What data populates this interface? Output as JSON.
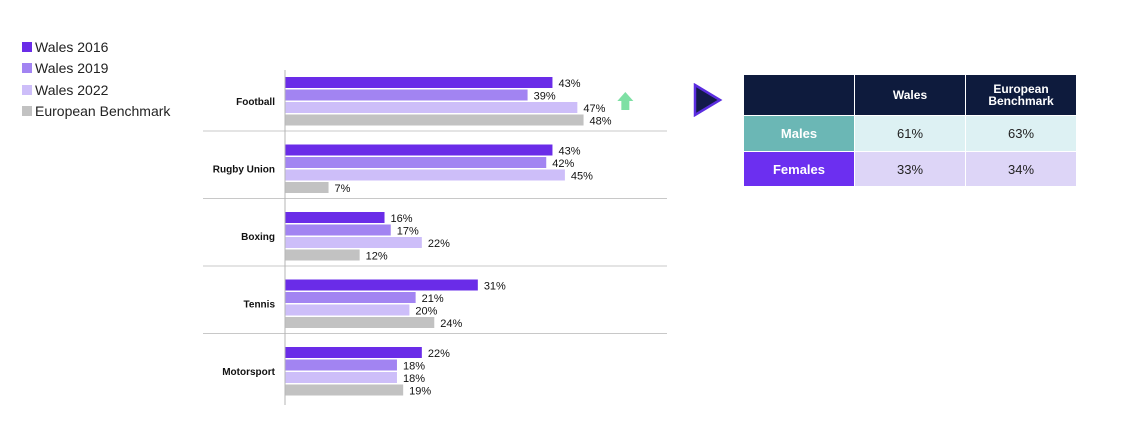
{
  "colors": {
    "wales_2016": "#6a2ce8",
    "wales_2019": "#a284f2",
    "wales_2022": "#cdbef9",
    "european_benchmark": "#c2c2c2",
    "table_header": "#0e1b3d",
    "males_label": "#6bb7b5",
    "females_label": "#6c2ff0",
    "males_cells": "#ddf1f3",
    "females_cells": "#ddd5f7",
    "up_arrow": "#7ee0a4"
  },
  "legend": [
    {
      "label": "Wales 2016",
      "color": "#6a2ce8"
    },
    {
      "label": "Wales 2019",
      "color": "#a284f2"
    },
    {
      "label": "Wales 2022",
      "color": "#cdbef9"
    },
    {
      "label": "European Benchmark",
      "color": "#c2c2c2"
    }
  ],
  "chart_data": {
    "type": "bar",
    "orientation": "horizontal",
    "categories": [
      "Football",
      "Rugby Union",
      "Boxing",
      "Tennis",
      "Motorsport"
    ],
    "series": [
      {
        "name": "Wales 2016",
        "values": [
          43,
          43,
          16,
          31,
          22
        ],
        "labels": [
          "43%",
          "43%",
          "16%",
          "31%",
          "22%"
        ]
      },
      {
        "name": "Wales 2019",
        "values": [
          39,
          42,
          17,
          21,
          18
        ],
        "labels": [
          "39%",
          "42%",
          "17%",
          "21%",
          "18%"
        ]
      },
      {
        "name": "Wales 2022",
        "values": [
          47,
          45,
          22,
          20,
          18
        ],
        "labels": [
          "47%",
          "45%",
          "22%",
          "20%",
          "18%"
        ]
      },
      {
        "name": "European Benchmark",
        "values": [
          48,
          7,
          12,
          24,
          19
        ],
        "labels": [
          "48%",
          "7%",
          "12%",
          "24%",
          "19%"
        ]
      }
    ],
    "xlim": [
      0,
      100
    ],
    "legend_position": "top-left",
    "annotations": [
      {
        "type": "up-arrow",
        "category": "Football",
        "series": "Wales 2022"
      }
    ]
  },
  "table": {
    "columns": [
      "Wales",
      "European Benchmark"
    ],
    "rows": [
      {
        "label": "Males",
        "values": [
          "61%",
          "63%"
        ]
      },
      {
        "label": "Females",
        "values": [
          "33%",
          "34%"
        ]
      }
    ]
  }
}
